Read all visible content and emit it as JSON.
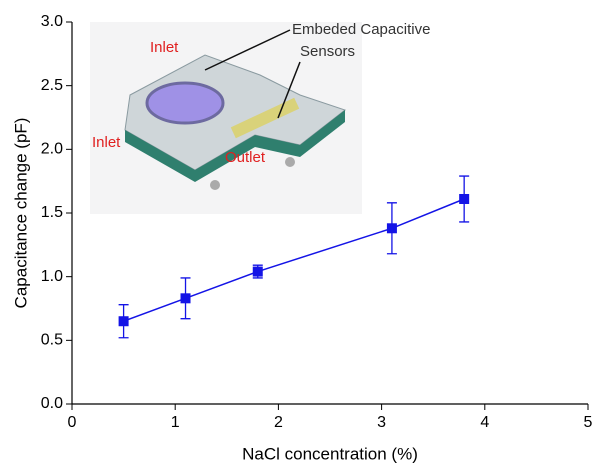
{
  "chart_data": {
    "type": "scatter",
    "x_label": "NaCl concentration (%)",
    "y_label": "Capacitance change (pF)",
    "xlim": [
      0,
      5
    ],
    "xticks": [
      0,
      1,
      2,
      3,
      4,
      5
    ],
    "ylim": [
      0,
      3
    ],
    "yticks": [
      {
        "value": 0,
        "label": "0.0"
      },
      0.5,
      {
        "value": 1,
        "label": "1.0"
      },
      1.5,
      {
        "value": 2,
        "label": "2.0"
      },
      2.5,
      {
        "value": 3,
        "label": "3.0"
      }
    ],
    "series": [
      {
        "color": "#1414e6",
        "x": [
          0.5,
          1.1,
          1.8,
          3.1,
          3.8
        ],
        "values": [
          0.65,
          0.83,
          1.04,
          1.38,
          1.61
        ],
        "errors": [
          0.13,
          0.16,
          0.05,
          0.2,
          0.18
        ]
      }
    ],
    "annotations": [
      "Inlet",
      "Inlet",
      "Outlet",
      "Embeded Capacitive",
      "Sensors"
    ]
  }
}
